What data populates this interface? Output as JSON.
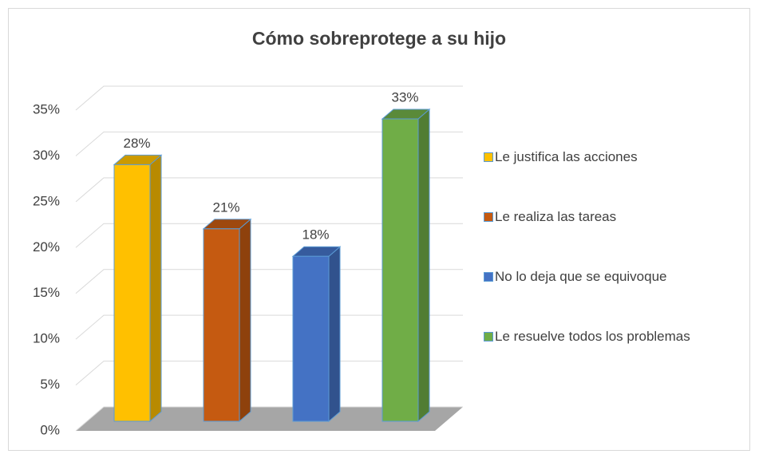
{
  "chart_data": {
    "type": "bar",
    "title": "Cómo sobreprotege a su hijo",
    "categories": [
      null
    ],
    "series": [
      {
        "name": "Le justifica las acciones",
        "color": "#ffc000",
        "values": [
          28
        ],
        "value_labels": [
          "28%"
        ]
      },
      {
        "name": "Le realiza las tareas",
        "color": "#c55a11",
        "values": [
          21
        ],
        "value_labels": [
          "21%"
        ]
      },
      {
        "name": "No lo deja que se equivoque",
        "color": "#4472c4",
        "values": [
          18
        ],
        "value_labels": [
          "18%"
        ]
      },
      {
        "name": "Le resuelve todos los problemas",
        "color": "#70ad47",
        "values": [
          33
        ],
        "value_labels": [
          "33%"
        ]
      }
    ],
    "ylim": [
      0,
      35
    ],
    "yticks": [
      {
        "value": 0,
        "label": "0%"
      },
      {
        "value": 5,
        "label": "5%"
      },
      {
        "value": 10,
        "label": "10%"
      },
      {
        "value": 15,
        "label": "15%"
      },
      {
        "value": 20,
        "label": "20%"
      },
      {
        "value": 25,
        "label": "25%"
      },
      {
        "value": 30,
        "label": "30%"
      },
      {
        "value": 35,
        "label": "35%"
      }
    ],
    "grid": true,
    "legend": "right"
  }
}
